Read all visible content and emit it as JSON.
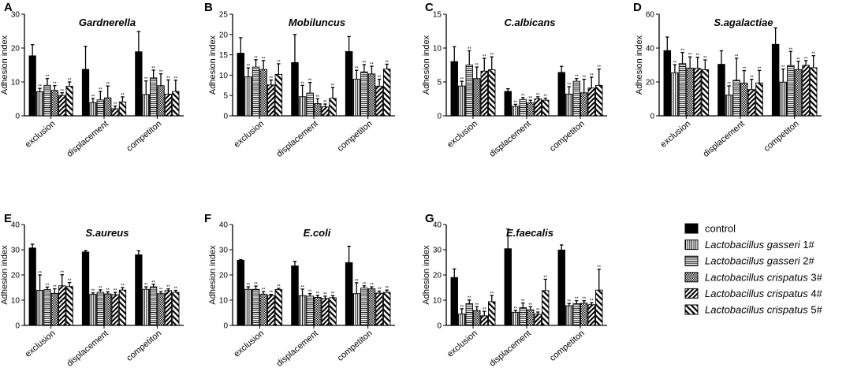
{
  "figure": {
    "series_names": [
      "control",
      "Lactobacillus gasseri 1#",
      "Lactobacillus gasseri 2#",
      "Lactobacillus crispatus 3#",
      "Lactobacillus crispatus 4#",
      "Lactobacillus crispatus 5#"
    ],
    "significance_mark": "**"
  },
  "legend": {
    "items": [
      {
        "italic": "",
        "suffix": "control"
      },
      {
        "italic": "Lactobacillus gasseri",
        "suffix": " 1#"
      },
      {
        "italic": "Lactobacillus gasseri",
        "suffix": " 2#"
      },
      {
        "italic": "Lactobacillus crispatus",
        "suffix": " 3#"
      },
      {
        "italic": "Lactobacillus crispatus",
        "suffix": " 4#"
      },
      {
        "italic": "Lactobacillus crispatus",
        "suffix": " 5#"
      }
    ]
  },
  "chart_data": [
    {
      "panel": "A",
      "title": "Gardnerella",
      "type": "bar",
      "ylabel": "Adhesion index",
      "ylim": [
        0,
        30
      ],
      "yticks": [
        0,
        10,
        20,
        30
      ],
      "categories": [
        "exclusion",
        "displacement",
        "competiton"
      ],
      "values": [
        [
          17.7,
          7.1,
          9.0,
          7.5,
          6.0,
          8.7
        ],
        [
          13.7,
          3.9,
          4.7,
          5.3,
          2.1,
          4.1
        ],
        [
          18.9,
          6.3,
          11.2,
          8.9,
          6.4,
          7.2
        ]
      ],
      "errors": [
        [
          3.3,
          1.0,
          2.0,
          1.4,
          0.8,
          1.3
        ],
        [
          6.8,
          1.2,
          2.5,
          3.5,
          0.8,
          1.5
        ],
        [
          6.0,
          4.0,
          2.3,
          3.5,
          4.2,
          3.3
        ]
      ],
      "significant": [
        [
          false,
          true,
          true,
          true,
          true,
          true
        ],
        [
          false,
          true,
          true,
          true,
          true,
          true
        ],
        [
          false,
          true,
          true,
          true,
          true,
          true
        ]
      ]
    },
    {
      "panel": "B",
      "title": "Mobiluncus",
      "type": "bar",
      "ylabel": "Adhesion index",
      "ylim": [
        0,
        25
      ],
      "yticks": [
        0,
        5,
        10,
        15,
        20,
        25
      ],
      "categories": [
        "exclusion",
        "displacement",
        "competiton"
      ],
      "values": [
        [
          15.4,
          9.6,
          12.0,
          11.4,
          7.6,
          10.2
        ],
        [
          13.1,
          4.7,
          5.6,
          3.0,
          2.2,
          4.3
        ],
        [
          15.8,
          9.0,
          10.8,
          10.3,
          7.3,
          11.5
        ]
      ],
      "errors": [
        [
          3.8,
          2.2,
          1.8,
          2.2,
          1.2,
          2.6
        ],
        [
          6.9,
          2.8,
          2.6,
          1.2,
          0.7,
          2.7
        ],
        [
          3.7,
          2.2,
          1.8,
          1.9,
          1.7,
          1.2
        ]
      ],
      "significant": [
        [
          false,
          true,
          true,
          true,
          true,
          true
        ],
        [
          false,
          true,
          true,
          true,
          true,
          true
        ],
        [
          false,
          true,
          true,
          true,
          true,
          true
        ]
      ]
    },
    {
      "panel": "C",
      "title": "C.albicans",
      "type": "bar",
      "ylabel": "Adhesion index",
      "ylim": [
        0,
        15
      ],
      "yticks": [
        0,
        5,
        10,
        15
      ],
      "categories": [
        "exclusion",
        "displacement",
        "competiton"
      ],
      "values": [
        [
          8.0,
          4.4,
          7.5,
          5.5,
          6.6,
          6.8
        ],
        [
          3.6,
          1.4,
          2.4,
          1.9,
          2.5,
          2.3
        ],
        [
          6.4,
          3.2,
          5.1,
          3.4,
          4.1,
          4.5
        ]
      ],
      "errors": [
        [
          2.2,
          0.7,
          2.1,
          1.7,
          1.9,
          1.9
        ],
        [
          0.4,
          0.3,
          0.3,
          0.4,
          0.3,
          0.3
        ],
        [
          0.9,
          1.1,
          0.4,
          2.0,
          1.6,
          2.4
        ]
      ],
      "significant": [
        [
          false,
          true,
          true,
          true,
          true,
          true
        ],
        [
          false,
          true,
          true,
          true,
          true,
          true
        ],
        [
          false,
          true,
          true,
          true,
          true,
          true
        ]
      ]
    },
    {
      "panel": "D",
      "title": "S.agalactiae",
      "type": "bar",
      "ylabel": "Adhesion index",
      "ylim": [
        0,
        60
      ],
      "yticks": [
        0,
        20,
        40,
        60
      ],
      "categories": [
        "exclusion",
        "displacement",
        "competiton"
      ],
      "values": [
        [
          38.5,
          25.4,
          30.8,
          28.2,
          28.0,
          27.2
        ],
        [
          30.4,
          12.2,
          21.0,
          19.3,
          15.5,
          19.4
        ],
        [
          42.2,
          19.9,
          29.7,
          27.3,
          29.8,
          28.4
        ]
      ],
      "errors": [
        [
          8.0,
          4.8,
          6.6,
          6.6,
          6.6,
          5.8
        ],
        [
          8.0,
          5.5,
          13.0,
          7.4,
          6.1,
          7.4
        ],
        [
          9.7,
          7.7,
          8.3,
          4.9,
          2.8,
          7.1
        ]
      ],
      "significant": [
        [
          false,
          true,
          true,
          true,
          true,
          true
        ],
        [
          false,
          true,
          true,
          true,
          true,
          true
        ],
        [
          false,
          true,
          true,
          true,
          true,
          true
        ]
      ]
    },
    {
      "panel": "E",
      "title": "S.aureus",
      "type": "bar",
      "ylabel": "Adhesion index",
      "ylim": [
        0,
        40
      ],
      "yticks": [
        0,
        10,
        20,
        30,
        40
      ],
      "categories": [
        "exclusion",
        "displacement",
        "competiton"
      ],
      "values": [
        [
          30.7,
          13.9,
          14.2,
          12.7,
          15.7,
          15.4
        ],
        [
          29.1,
          12.3,
          13.1,
          12.5,
          12.2,
          14.0
        ],
        [
          28.0,
          14.3,
          15.3,
          12.6,
          13.8,
          13.1
        ]
      ],
      "errors": [
        [
          1.5,
          6.1,
          1.0,
          1.8,
          4.4,
          1.6
        ],
        [
          0.6,
          0.6,
          1.0,
          0.8,
          0.9,
          1.0
        ],
        [
          1.6,
          1.0,
          1.0,
          0.8,
          0.7,
          0.8
        ]
      ],
      "significant": [
        [
          false,
          true,
          true,
          true,
          true,
          true
        ],
        [
          false,
          true,
          true,
          true,
          true,
          true
        ],
        [
          false,
          true,
          true,
          true,
          true,
          true
        ]
      ]
    },
    {
      "panel": "F",
      "title": "E.coli",
      "type": "bar",
      "ylabel": "Adhesion index",
      "ylim": [
        0,
        40
      ],
      "yticks": [
        0,
        10,
        20,
        30,
        40
      ],
      "categories": [
        "exclusion",
        "displacement",
        "competiton"
      ],
      "values": [
        [
          25.8,
          14.3,
          14.3,
          12.4,
          11.9,
          14.2
        ],
        [
          23.6,
          11.8,
          11.6,
          11.1,
          10.7,
          11.0
        ],
        [
          24.9,
          12.6,
          14.8,
          14.5,
          12.8,
          13.1
        ]
      ],
      "errors": [
        [
          0.3,
          1.0,
          1.3,
          1.0,
          0.4,
          0.5
        ],
        [
          1.8,
          2.6,
          1.0,
          0.8,
          0.9,
          0.8
        ],
        [
          6.5,
          4.3,
          0.9,
          0.8,
          0.8,
          0.9
        ]
      ],
      "significant": [
        [
          false,
          true,
          true,
          true,
          true,
          true
        ],
        [
          false,
          true,
          true,
          true,
          true,
          true
        ],
        [
          false,
          true,
          true,
          true,
          true,
          true
        ]
      ]
    },
    {
      "panel": "G",
      "title": "E.faecalis",
      "type": "bar",
      "ylabel": "Adhesion index",
      "ylim": [
        0,
        40
      ],
      "yticks": [
        0,
        10,
        20,
        30,
        40
      ],
      "categories": [
        "exclusion",
        "displacement",
        "competiton"
      ],
      "values": [
        [
          19.0,
          4.5,
          8.6,
          5.9,
          3.8,
          9.4
        ],
        [
          30.4,
          5.2,
          7.0,
          6.2,
          4.4,
          13.8
        ],
        [
          29.9,
          7.8,
          8.6,
          8.8,
          8.2,
          14.0
        ]
      ],
      "errors": [
        [
          3.4,
          2.1,
          1.5,
          1.5,
          1.8,
          2.5
        ],
        [
          7.8,
          0.8,
          1.9,
          1.2,
          0.9,
          4.5
        ],
        [
          2.0,
          0.9,
          1.2,
          1.0,
          0.8,
          8.3
        ]
      ],
      "significant": [
        [
          false,
          true,
          true,
          true,
          true,
          true
        ],
        [
          false,
          true,
          true,
          true,
          true,
          true
        ],
        [
          false,
          true,
          true,
          true,
          true,
          true
        ]
      ]
    }
  ]
}
